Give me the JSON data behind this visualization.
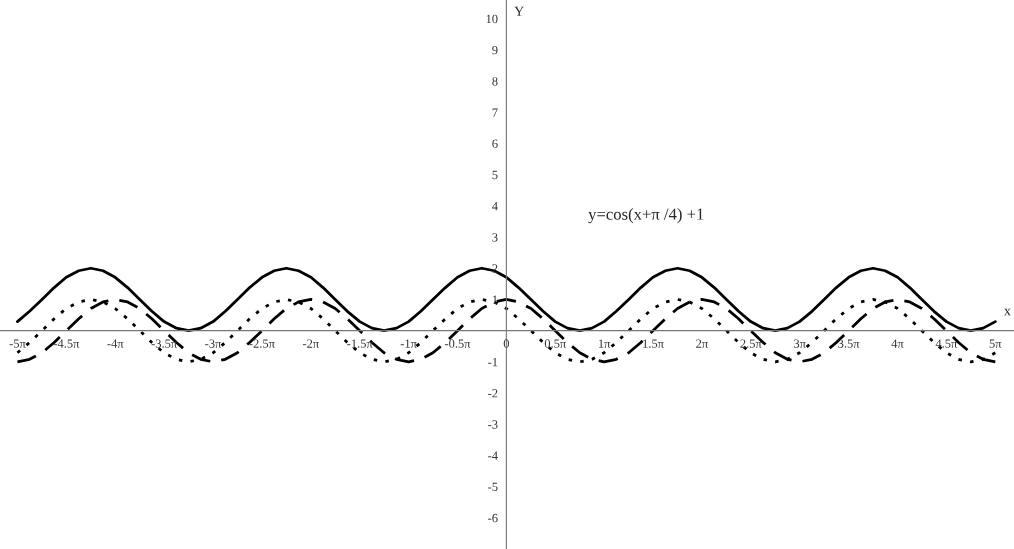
{
  "chart_data": {
    "type": "line",
    "x": [
      -15.71,
      -15.32,
      -14.92,
      -14.53,
      -14.14,
      -13.74,
      -13.35,
      -12.96,
      -12.57,
      -12.17,
      -11.78,
      -11.39,
      -11.0,
      -10.6,
      -10.21,
      -9.82,
      -9.42,
      -9.03,
      -8.64,
      -8.25,
      -7.85,
      -7.46,
      -7.07,
      -6.68,
      -6.28,
      -5.89,
      -5.5,
      -5.11,
      -4.71,
      -4.32,
      -3.93,
      -3.53,
      -3.14,
      -2.75,
      -2.36,
      -1.96,
      -1.57,
      -1.18,
      -0.79,
      -0.39,
      0,
      0.39,
      0.79,
      1.18,
      1.57,
      1.96,
      2.36,
      2.75,
      3.14,
      3.53,
      3.93,
      4.32,
      4.71,
      5.11,
      5.5,
      5.89,
      6.28,
      6.68,
      7.07,
      7.46,
      7.85,
      8.25,
      8.64,
      9.03,
      9.42,
      9.82,
      10.21,
      10.6,
      11.0,
      11.39,
      11.78,
      12.17,
      12.57,
      12.96,
      13.35,
      13.74,
      14.14,
      14.53,
      14.92,
      15.32,
      15.71
    ],
    "series": [
      {
        "color": "#000000",
        "line_style": "solid",
        "values": [
          0.29,
          0.62,
          1,
          1.38,
          1.71,
          1.92,
          2,
          1.92,
          1.71,
          1.38,
          1,
          0.62,
          0.29,
          0.08,
          0,
          0.08,
          0.29,
          0.62,
          1,
          1.38,
          1.71,
          1.92,
          2,
          1.92,
          1.71,
          1.38,
          1,
          0.62,
          0.29,
          0.08,
          0,
          0.08,
          0.29,
          0.62,
          1,
          1.38,
          1.71,
          1.92,
          2,
          1.92,
          1.71,
          1.38,
          1,
          0.62,
          0.29,
          0.08,
          0,
          0.08,
          0.29,
          0.62,
          1,
          1.38,
          1.71,
          1.92,
          2,
          1.92,
          1.71,
          1.38,
          1,
          0.62,
          0.29,
          0.08,
          0,
          0.08,
          0.29,
          0.62,
          1,
          1.38,
          1.71,
          1.92,
          2,
          1.92,
          1.71,
          1.38,
          1,
          0.62,
          0.29,
          0.08,
          0,
          0.08,
          0.29
        ]
      },
      {
        "color": "#000000",
        "line_style": "dotted",
        "values": [
          -0.71,
          -0.38,
          0,
          0.38,
          0.71,
          0.92,
          1,
          0.92,
          0.71,
          0.38,
          0,
          -0.38,
          -0.71,
          -0.92,
          -1,
          -0.92,
          -0.71,
          -0.38,
          0,
          0.38,
          0.71,
          0.92,
          1,
          0.92,
          0.71,
          0.38,
          0,
          -0.38,
          -0.71,
          -0.92,
          -1,
          -0.92,
          -0.71,
          -0.38,
          0,
          0.38,
          0.71,
          0.92,
          1,
          0.92,
          0.71,
          0.38,
          0,
          -0.38,
          -0.71,
          -0.92,
          -1,
          -0.92,
          -0.71,
          -0.38,
          0,
          0.38,
          0.71,
          0.92,
          1,
          0.92,
          0.71,
          0.38,
          0,
          -0.38,
          -0.71,
          -0.92,
          -1,
          -0.92,
          -0.71,
          -0.38,
          0,
          0.38,
          0.71,
          0.92,
          1,
          0.92,
          0.71,
          0.38,
          0,
          -0.38,
          -0.71,
          -0.92,
          -1,
          -0.92,
          -0.71
        ]
      },
      {
        "color": "#000000",
        "line_style": "dashed",
        "values": [
          -1,
          -0.92,
          -0.71,
          -0.38,
          0,
          0.38,
          0.71,
          0.92,
          1,
          0.92,
          0.71,
          0.38,
          0,
          -0.38,
          -0.71,
          -0.92,
          -1,
          -0.92,
          -0.71,
          -0.38,
          0,
          0.38,
          0.71,
          0.92,
          1,
          0.92,
          0.71,
          0.38,
          0,
          -0.38,
          -0.71,
          -0.92,
          -1,
          -0.92,
          -0.71,
          -0.38,
          0,
          0.38,
          0.71,
          0.92,
          1,
          0.92,
          0.71,
          0.38,
          0,
          -0.38,
          -0.71,
          -0.92,
          -1,
          -0.92,
          -0.71,
          -0.38,
          0,
          0.38,
          0.71,
          0.92,
          1,
          0.92,
          0.71,
          0.38,
          0,
          -0.38,
          -0.71,
          -0.92,
          -1,
          -0.92,
          -0.71,
          -0.38,
          0,
          0.38,
          0.71,
          0.92,
          1,
          0.92,
          0.71,
          0.38,
          0,
          -0.38,
          -0.71,
          -0.92,
          -1
        ]
      }
    ],
    "xlabel": "x",
    "ylabel": "Y",
    "annotations": [
      "y=cos(x+π /4) +1"
    ],
    "xlim": [
      -16.27,
      16.31
    ],
    "ylim": [
      -7,
      10.6
    ],
    "xticks": [
      {
        "value": -15.708,
        "label": "-5π"
      },
      {
        "value": -14.137,
        "label": "-4.5π"
      },
      {
        "value": -12.566,
        "label": "-4π"
      },
      {
        "value": -10.996,
        "label": "-3.5π"
      },
      {
        "value": -9.425,
        "label": "-3π"
      },
      {
        "value": -7.854,
        "label": "-2.5π"
      },
      {
        "value": -6.283,
        "label": "-2π"
      },
      {
        "value": -4.712,
        "label": "-1.5π"
      },
      {
        "value": -3.142,
        "label": "-1π"
      },
      {
        "value": -1.571,
        "label": "-0.5π"
      },
      {
        "value": 0,
        "label": "0"
      },
      {
        "value": 1.571,
        "label": "0.5π"
      },
      {
        "value": 3.142,
        "label": "1π"
      },
      {
        "value": 4.712,
        "label": "1.5π"
      },
      {
        "value": 6.283,
        "label": "2π"
      },
      {
        "value": 7.854,
        "label": "2.5π"
      },
      {
        "value": 9.425,
        "label": "3π"
      },
      {
        "value": 10.996,
        "label": "3.5π"
      },
      {
        "value": 12.566,
        "label": "4π"
      },
      {
        "value": 14.137,
        "label": "4.5π"
      },
      {
        "value": 15.708,
        "label": "5π"
      }
    ],
    "yticks": [
      -6,
      -5,
      -4,
      -3,
      -2,
      -1,
      1,
      2,
      3,
      4,
      5,
      6,
      7,
      8,
      9,
      10
    ],
    "grid": false,
    "legend": false
  }
}
